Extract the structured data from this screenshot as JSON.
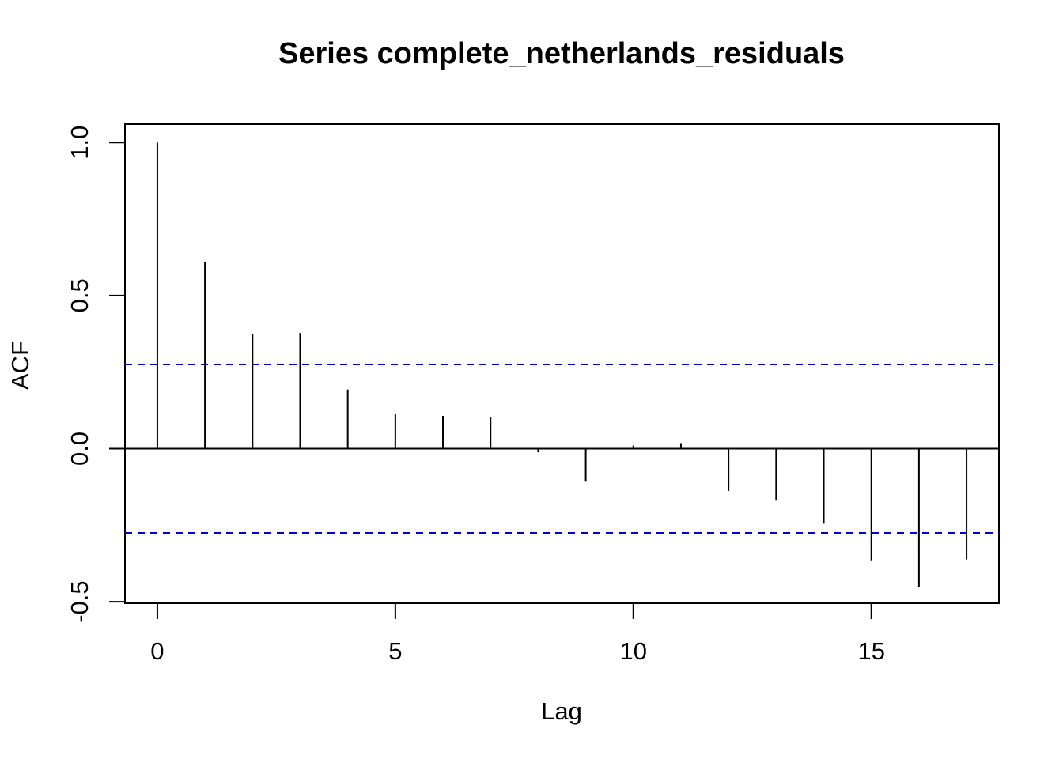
{
  "chart_data": {
    "type": "bar",
    "title": "Series  complete_netherlands_residuals",
    "xlabel": "Lag",
    "ylabel": "ACF",
    "xlim": [
      -0.68,
      17.68
    ],
    "ylim": [
      -0.505,
      1.06
    ],
    "x_ticks": [
      0,
      5,
      10,
      15
    ],
    "x_tick_labels": [
      "0",
      "5",
      "10",
      "15"
    ],
    "y_ticks": [
      -0.5,
      0.0,
      0.5,
      1.0
    ],
    "y_tick_labels": [
      "-0.5",
      "0.0",
      "0.5",
      "1.0"
    ],
    "x": [
      0,
      1,
      2,
      3,
      4,
      5,
      6,
      7,
      8,
      9,
      10,
      11,
      12,
      13,
      14,
      15,
      16,
      17
    ],
    "values": [
      1.0,
      0.61,
      0.375,
      0.378,
      0.193,
      0.112,
      0.107,
      0.103,
      -0.012,
      -0.108,
      0.01,
      0.018,
      -0.138,
      -0.17,
      -0.245,
      -0.365,
      -0.452,
      -0.362
    ],
    "confidence_bounds": [
      0.275,
      -0.275
    ],
    "zero_line": 0,
    "grid": false,
    "colors": {
      "bars": "#000000",
      "confidence": "#0000cc",
      "axes": "#000000"
    }
  }
}
